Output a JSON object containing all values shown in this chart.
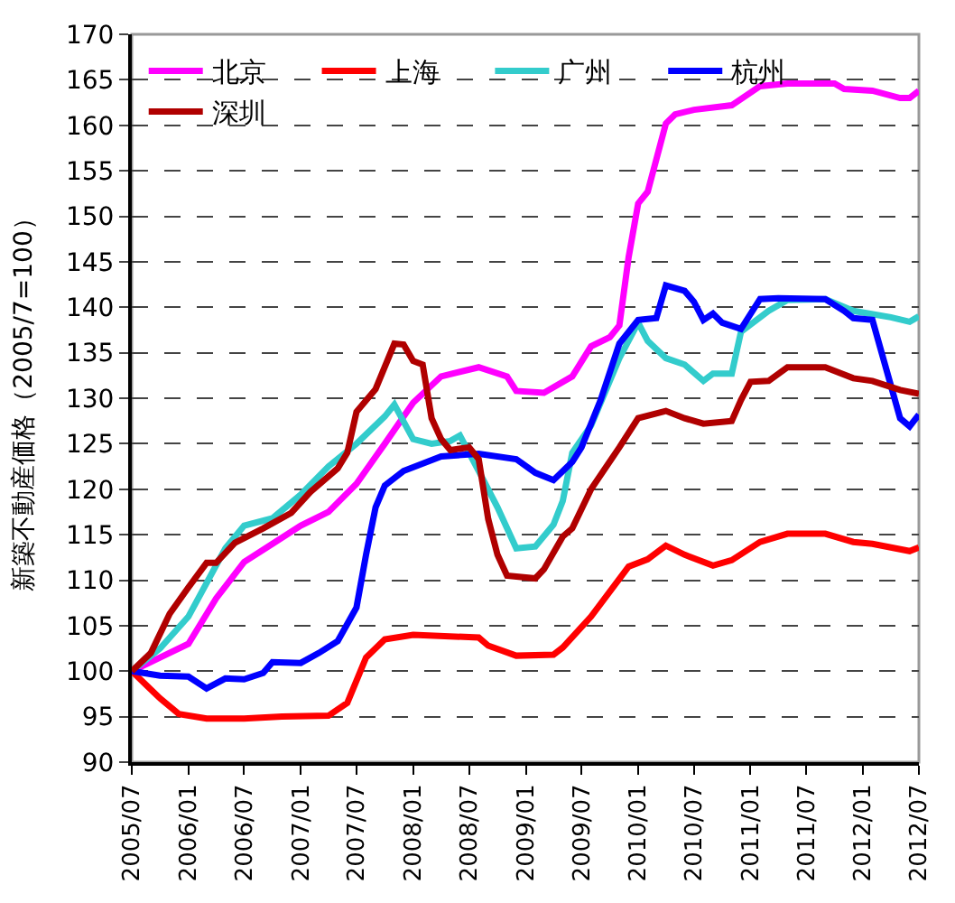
{
  "chart_data": {
    "type": "line",
    "ylabel": "新築不動産価格（2005/7=100）",
    "xlim": [
      "2005-07",
      "2012-07"
    ],
    "xticks": [
      {
        "value": "2005-07",
        "label": "2005/07"
      },
      {
        "value": "2006-01",
        "label": "2006/01"
      },
      {
        "value": "2006-07",
        "label": "2006/07"
      },
      {
        "value": "2007-01",
        "label": "2007/01"
      },
      {
        "value": "2007-07",
        "label": "2007/07"
      },
      {
        "value": "2008-01",
        "label": "2008/01"
      },
      {
        "value": "2008-07",
        "label": "2008/07"
      },
      {
        "value": "2009-01",
        "label": "2009/01"
      },
      {
        "value": "2009-07",
        "label": "2009/07"
      },
      {
        "value": "2010-01",
        "label": "2010/01"
      },
      {
        "value": "2010-07",
        "label": "2010/07"
      },
      {
        "value": "2011-01",
        "label": "2011/01"
      },
      {
        "value": "2011-07",
        "label": "2011/07"
      },
      {
        "value": "2012-01",
        "label": "2012/01"
      },
      {
        "value": "2012-07",
        "label": "2012/07"
      }
    ],
    "ylim": [
      90,
      170
    ],
    "yticks": [
      90,
      95,
      100,
      105,
      110,
      115,
      120,
      125,
      130,
      135,
      140,
      145,
      150,
      155,
      160,
      165,
      170
    ],
    "grid": "y",
    "legend": "top left",
    "marker": "none",
    "line_style": "solid",
    "series": [
      {
        "name": "北京",
        "color": "#ff00ff",
        "x": [
          "2005-07",
          "2005-10",
          "2006-01",
          "2006-04",
          "2006-07",
          "2006-10",
          "2007-01",
          "2007-04",
          "2007-07",
          "2007-10",
          "2008-01",
          "2008-04",
          "2008-08",
          "2008-11",
          "2008-12",
          "2009-03",
          "2009-06",
          "2009-08",
          "2009-10",
          "2009-11",
          "2009-12",
          "2010-01",
          "2010-02",
          "2010-04",
          "2010-05",
          "2010-07",
          "2010-11",
          "2011-02",
          "2011-05",
          "2011-10",
          "2011-11",
          "2012-02",
          "2012-05",
          "2012-06",
          "2012-07"
        ],
        "values": [
          100,
          101.5,
          103,
          108,
          112,
          114,
          116,
          117.5,
          120.6,
          125,
          129.5,
          132.4,
          133.4,
          132.4,
          130.8,
          130.6,
          132.4,
          135.7,
          136.7,
          138,
          145.5,
          151.4,
          152.7,
          160.2,
          161.2,
          161.7,
          162.2,
          164.3,
          164.6,
          164.6,
          164,
          163.8,
          163,
          163,
          163.8
        ]
      },
      {
        "name": "上海",
        "color": "#ff0000",
        "x": [
          "2005-07",
          "2005-10",
          "2005-12",
          "2006-03",
          "2006-07",
          "2006-11",
          "2007-04",
          "2007-06",
          "2007-08",
          "2007-10",
          "2008-01",
          "2008-08",
          "2008-09",
          "2008-12",
          "2009-04",
          "2009-05",
          "2009-08",
          "2009-12",
          "2010-02",
          "2010-04",
          "2010-06",
          "2010-09",
          "2010-11",
          "2011-02",
          "2011-05",
          "2011-09",
          "2011-12",
          "2012-02",
          "2012-06",
          "2012-07"
        ],
        "values": [
          100,
          97,
          95.3,
          94.8,
          94.8,
          95,
          95.1,
          96.5,
          101.5,
          103.5,
          104,
          103.7,
          102.8,
          101.7,
          101.8,
          102.6,
          106,
          111.5,
          112.3,
          113.8,
          112.8,
          111.6,
          112.2,
          114.2,
          115.1,
          115.1,
          114.2,
          114,
          113.2,
          113.6
        ]
      },
      {
        "name": "广州",
        "color": "#33cccc",
        "x": [
          "2005-07",
          "2005-10",
          "2006-01",
          "2006-05",
          "2006-07",
          "2006-10",
          "2007-01",
          "2007-04",
          "2007-07",
          "2007-10",
          "2007-11",
          "2008-01",
          "2008-03",
          "2008-05",
          "2008-06",
          "2008-08",
          "2008-10",
          "2008-12",
          "2009-02",
          "2009-04",
          "2009-05",
          "2009-06",
          "2009-08",
          "2009-11",
          "2010-01",
          "2010-02",
          "2010-04",
          "2010-06",
          "2010-08",
          "2010-09",
          "2010-11",
          "2010-12",
          "2011-03",
          "2011-05",
          "2011-09",
          "2011-12",
          "2012-04",
          "2012-06",
          "2012-07"
        ],
        "values": [
          100,
          102.5,
          106,
          113.5,
          116,
          116.8,
          119.4,
          122.5,
          125,
          128,
          129.3,
          125.5,
          125,
          125.3,
          125.9,
          122,
          118,
          113.5,
          113.7,
          116.1,
          118.7,
          124,
          127,
          134.4,
          138.3,
          136.3,
          134.4,
          133.7,
          131.9,
          132.7,
          132.7,
          137.3,
          139.6,
          140.8,
          140.9,
          139.6,
          138.9,
          138.4,
          139
        ]
      },
      {
        "name": "杭州",
        "color": "#0000ff",
        "x": [
          "2005-07",
          "2005-10",
          "2006-01",
          "2006-03",
          "2006-05",
          "2006-07",
          "2006-09",
          "2006-10",
          "2007-01",
          "2007-03",
          "2007-05",
          "2007-07",
          "2007-08",
          "2007-09",
          "2007-10",
          "2007-12",
          "2008-04",
          "2008-08",
          "2008-12",
          "2009-02",
          "2009-04",
          "2009-06",
          "2009-07",
          "2009-09",
          "2009-11",
          "2010-01",
          "2010-03",
          "2010-04",
          "2010-06",
          "2010-07",
          "2010-08",
          "2010-09",
          "2010-10",
          "2010-12",
          "2011-02",
          "2011-04",
          "2011-09",
          "2011-11",
          "2011-12",
          "2012-02",
          "2012-05",
          "2012-06",
          "2012-07"
        ],
        "values": [
          100,
          99.5,
          99.4,
          98.1,
          99.2,
          99.1,
          99.8,
          101,
          100.9,
          102,
          103.3,
          107,
          112.8,
          118,
          120.4,
          122,
          123.6,
          123.9,
          123.3,
          121.8,
          121,
          123,
          124.6,
          129.8,
          136,
          138.6,
          138.8,
          142.4,
          141.8,
          140.6,
          138.6,
          139.3,
          138.3,
          137.6,
          140.9,
          141,
          140.9,
          139.6,
          138.8,
          138.6,
          127.8,
          126.9,
          128.2
        ]
      },
      {
        "name": "深圳",
        "color": "#b00000",
        "x": [
          "2005-07",
          "2005-09",
          "2005-11",
          "2006-01",
          "2006-03",
          "2006-04",
          "2006-06",
          "2006-09",
          "2006-12",
          "2007-02",
          "2007-05",
          "2007-06",
          "2007-07",
          "2007-09",
          "2007-11",
          "2007-12",
          "2008-01",
          "2008-02",
          "2008-03",
          "2008-04",
          "2008-05",
          "2008-07",
          "2008-08",
          "2008-09",
          "2008-10",
          "2008-11",
          "2009-02",
          "2009-03",
          "2009-05",
          "2009-06",
          "2009-08",
          "2009-11",
          "2010-01",
          "2010-04",
          "2010-06",
          "2010-08",
          "2010-11",
          "2010-12",
          "2011-01",
          "2011-03",
          "2011-05",
          "2011-09",
          "2011-12",
          "2012-02",
          "2012-05",
          "2012-07"
        ],
        "values": [
          100,
          102,
          106.3,
          109.2,
          111.9,
          111.9,
          114.1,
          115.7,
          117.4,
          119.7,
          122.3,
          124,
          128.5,
          131,
          136,
          135.9,
          134.1,
          133.7,
          127.8,
          125.5,
          124.3,
          124.6,
          123.3,
          116.7,
          112.8,
          110.5,
          110.2,
          111.2,
          114.8,
          115.7,
          120,
          124.6,
          127.8,
          128.6,
          127.8,
          127.2,
          127.5,
          129.8,
          131.8,
          131.9,
          133.4,
          133.4,
          132.2,
          131.9,
          130.9,
          130.5
        ]
      }
    ]
  }
}
